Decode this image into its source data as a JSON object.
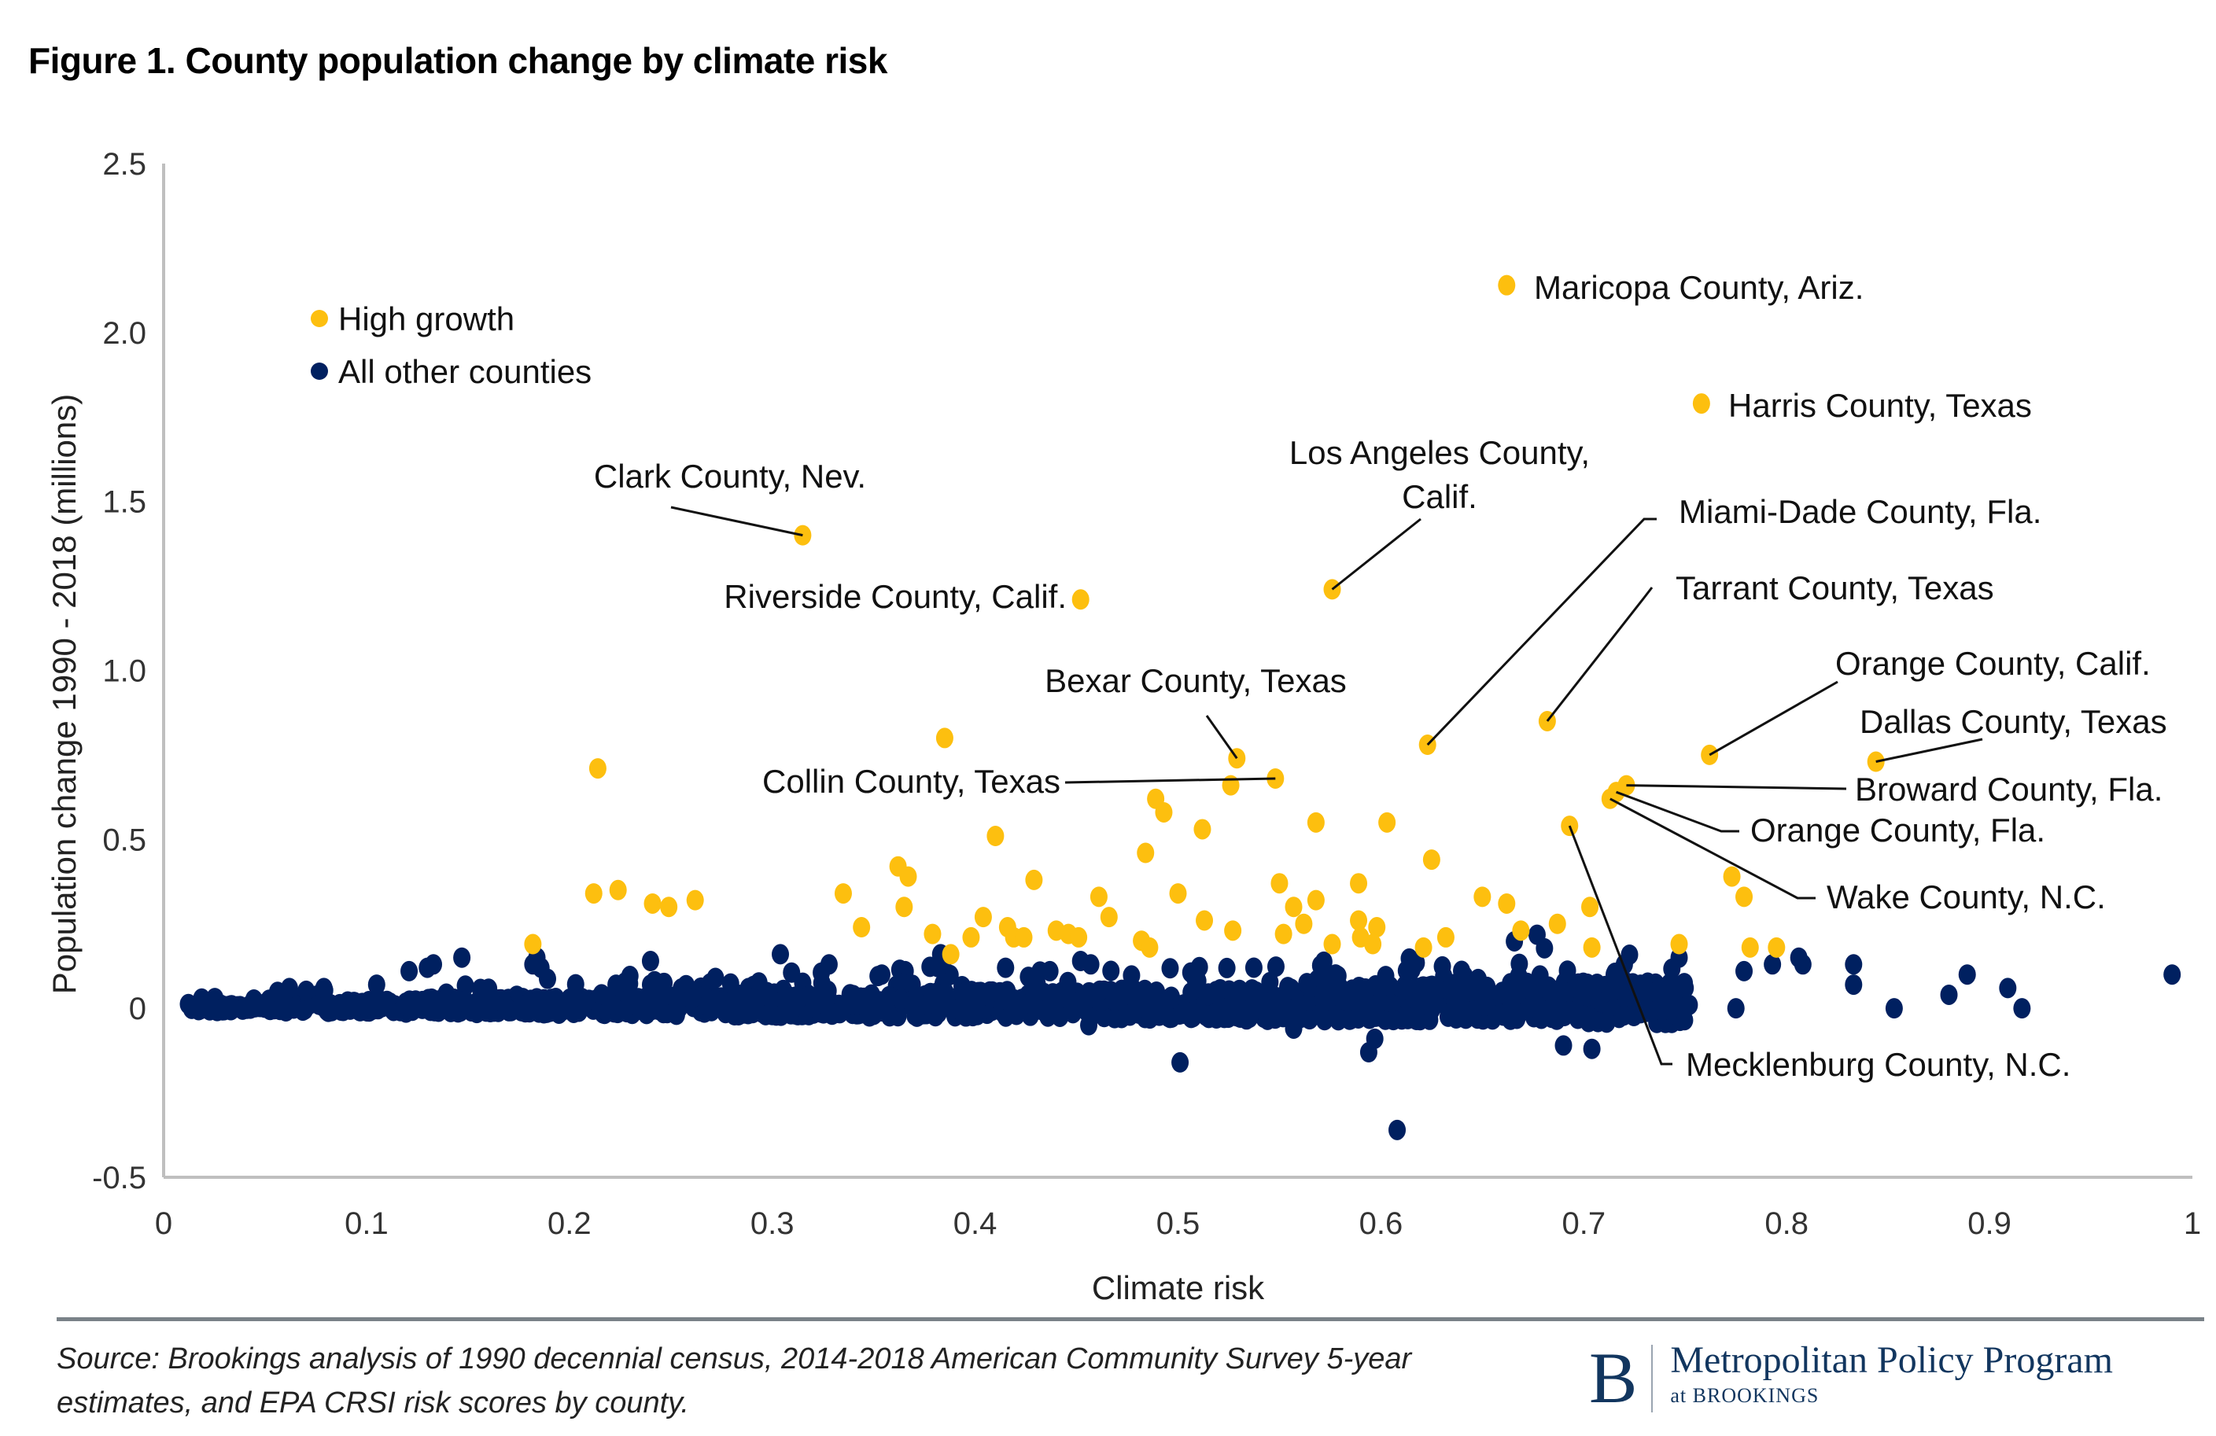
{
  "title": "Figure 1. County population change by climate risk",
  "source": "Source: Brookings analysis of 1990 decennial census, 2014-2018 American Community Survey 5-year estimates, and EPA CRSI risk scores by county.",
  "logo": {
    "mark": "B",
    "main": "Metropolitan Policy Program",
    "sub": "at BROOKINGS"
  },
  "chart_data": {
    "type": "scatter",
    "title": "Figure 1. County population change by climate risk",
    "xlabel": "Climate risk",
    "ylabel": "Population change 1990 - 2018 (millions)",
    "xlim": [
      0,
      1
    ],
    "ylim": [
      -0.5,
      2.5
    ],
    "xticks": [
      0,
      0.1,
      0.2,
      0.3,
      0.4,
      0.5,
      0.6,
      0.7,
      0.8,
      0.9,
      1
    ],
    "xtick_labels": [
      "0",
      "0.1",
      "0.2",
      "0.3",
      "0.4",
      "0.5",
      "0.6",
      "0.7",
      "0.8",
      "0.9",
      "1"
    ],
    "yticks": [
      -0.5,
      0,
      0.5,
      1.0,
      1.5,
      2.0,
      2.5
    ],
    "ytick_labels": [
      "-0.5",
      "0",
      "0.5",
      "1.0",
      "1.5",
      "2.0",
      "2.5"
    ],
    "grid": false,
    "legend_position": "top-left",
    "colors": {
      "high_growth": "#FDBF0F",
      "other": "#002060",
      "axis": "#BFBFBF",
      "leader": "#111111"
    },
    "series": [
      {
        "name": "High growth",
        "color": "#FDBF0F",
        "points": [
          [
            0.662,
            2.14
          ],
          [
            0.758,
            1.79
          ],
          [
            0.315,
            1.4
          ],
          [
            0.576,
            1.24
          ],
          [
            0.452,
            1.21
          ],
          [
            0.682,
            0.85
          ],
          [
            0.623,
            0.78
          ],
          [
            0.762,
            0.75
          ],
          [
            0.529,
            0.74
          ],
          [
            0.844,
            0.73
          ],
          [
            0.548,
            0.68
          ],
          [
            0.721,
            0.66
          ],
          [
            0.716,
            0.64
          ],
          [
            0.713,
            0.62
          ],
          [
            0.693,
            0.54
          ],
          [
            0.214,
            0.71
          ],
          [
            0.385,
            0.8
          ],
          [
            0.41,
            0.51
          ],
          [
            0.526,
            0.66
          ],
          [
            0.489,
            0.62
          ],
          [
            0.493,
            0.58
          ],
          [
            0.512,
            0.53
          ],
          [
            0.603,
            0.55
          ],
          [
            0.568,
            0.55
          ],
          [
            0.484,
            0.46
          ],
          [
            0.625,
            0.44
          ],
          [
            0.362,
            0.42
          ],
          [
            0.367,
            0.39
          ],
          [
            0.429,
            0.38
          ],
          [
            0.55,
            0.37
          ],
          [
            0.589,
            0.37
          ],
          [
            0.212,
            0.34
          ],
          [
            0.224,
            0.35
          ],
          [
            0.241,
            0.31
          ],
          [
            0.249,
            0.3
          ],
          [
            0.262,
            0.32
          ],
          [
            0.335,
            0.34
          ],
          [
            0.461,
            0.33
          ],
          [
            0.5,
            0.34
          ],
          [
            0.557,
            0.3
          ],
          [
            0.568,
            0.32
          ],
          [
            0.65,
            0.33
          ],
          [
            0.662,
            0.31
          ],
          [
            0.773,
            0.39
          ],
          [
            0.779,
            0.33
          ],
          [
            0.703,
            0.3
          ],
          [
            0.365,
            0.3
          ],
          [
            0.404,
            0.27
          ],
          [
            0.344,
            0.24
          ],
          [
            0.379,
            0.22
          ],
          [
            0.416,
            0.24
          ],
          [
            0.466,
            0.27
          ],
          [
            0.513,
            0.26
          ],
          [
            0.589,
            0.26
          ],
          [
            0.598,
            0.24
          ],
          [
            0.669,
            0.23
          ],
          [
            0.687,
            0.25
          ],
          [
            0.398,
            0.21
          ],
          [
            0.419,
            0.21
          ],
          [
            0.424,
            0.21
          ],
          [
            0.44,
            0.23
          ],
          [
            0.446,
            0.22
          ],
          [
            0.451,
            0.21
          ],
          [
            0.527,
            0.23
          ],
          [
            0.552,
            0.22
          ],
          [
            0.562,
            0.25
          ],
          [
            0.576,
            0.19
          ],
          [
            0.59,
            0.21
          ],
          [
            0.596,
            0.19
          ],
          [
            0.621,
            0.18
          ],
          [
            0.632,
            0.21
          ],
          [
            0.704,
            0.18
          ],
          [
            0.747,
            0.19
          ],
          [
            0.782,
            0.18
          ],
          [
            0.795,
            0.18
          ],
          [
            0.182,
            0.19
          ],
          [
            0.482,
            0.2
          ],
          [
            0.486,
            0.18
          ],
          [
            0.388,
            0.16
          ]
        ]
      },
      {
        "name": "All other counties",
        "color": "#002060",
        "points": [
          [
            0.501,
            -0.16
          ],
          [
            0.608,
            -0.36
          ],
          [
            0.594,
            -0.13
          ],
          [
            0.597,
            -0.09
          ],
          [
            0.69,
            -0.11
          ],
          [
            0.704,
            -0.12
          ],
          [
            0.456,
            -0.05
          ],
          [
            0.557,
            -0.06
          ],
          [
            0.99,
            0.1
          ],
          [
            0.909,
            0.06
          ],
          [
            0.889,
            0.1
          ],
          [
            0.88,
            0.04
          ],
          [
            0.853,
            0.0
          ],
          [
            0.916,
            0.0
          ],
          [
            0.833,
            0.07
          ],
          [
            0.833,
            0.13
          ],
          [
            0.775,
            0.0
          ],
          [
            0.779,
            0.11
          ],
          [
            0.793,
            0.13
          ],
          [
            0.806,
            0.15
          ],
          [
            0.808,
            0.13
          ],
          [
            0.728,
            0.07
          ],
          [
            0.73,
            -0.01
          ],
          [
            0.75,
            0.06
          ],
          [
            0.752,
            0.01
          ],
          [
            0.747,
            0.15
          ],
          [
            0.715,
            0.1
          ],
          [
            0.72,
            0.13
          ],
          [
            0.062,
            0.06
          ],
          [
            0.079,
            0.06
          ],
          [
            0.105,
            0.07
          ],
          [
            0.121,
            0.11
          ],
          [
            0.13,
            0.12
          ],
          [
            0.133,
            0.13
          ],
          [
            0.147,
            0.15
          ],
          [
            0.182,
            0.13
          ],
          [
            0.184,
            0.15
          ],
          [
            0.186,
            0.12
          ],
          [
            0.223,
            0.07
          ],
          [
            0.24,
            0.14
          ],
          [
            0.24,
            0.07
          ],
          [
            0.242,
            0.08
          ],
          [
            0.272,
            0.09
          ],
          [
            0.304,
            0.16
          ],
          [
            0.328,
            0.13
          ],
          [
            0.354,
            0.1
          ],
          [
            0.383,
            0.16
          ],
          [
            0.384,
            0.13
          ],
          [
            0.415,
            0.12
          ],
          [
            0.452,
            0.14
          ],
          [
            0.457,
            0.13
          ]
        ],
        "dense_cluster_note": "Approx. 3,000 additional counties concentrated near 0 (roughly -0.05 to 0.1 million) across climate risk 0.01-0.75"
      }
    ],
    "annotations": [
      {
        "label": "Maricopa County, Ariz.",
        "point": [
          0.662,
          2.14
        ],
        "leader": false
      },
      {
        "label": "Harris County, Texas",
        "point": [
          0.758,
          1.79
        ],
        "leader": false
      },
      {
        "label": "Clark County, Nev.",
        "point": [
          0.315,
          1.4
        ],
        "leader": true
      },
      {
        "label": "Los Angeles County, Calif.",
        "point": [
          0.576,
          1.24
        ],
        "leader": true
      },
      {
        "label": "Riverside County, Calif.",
        "point": [
          0.452,
          1.21
        ],
        "leader": false
      },
      {
        "label": "Miami-Dade County, Fla.",
        "point": [
          0.623,
          0.78
        ],
        "leader": true
      },
      {
        "label": "Tarrant County, Texas",
        "point": [
          0.682,
          0.85
        ],
        "leader": true
      },
      {
        "label": "Bexar County, Texas",
        "point": [
          0.529,
          0.74
        ],
        "leader": true
      },
      {
        "label": "Collin County, Texas",
        "point": [
          0.548,
          0.68
        ],
        "leader": true
      },
      {
        "label": "Orange County, Calif.",
        "point": [
          0.762,
          0.75
        ],
        "leader": true
      },
      {
        "label": "Dallas County, Texas",
        "point": [
          0.844,
          0.73
        ],
        "leader": true
      },
      {
        "label": "Broward County, Fla.",
        "point": [
          0.721,
          0.66
        ],
        "leader": true
      },
      {
        "label": "Orange County, Fla.",
        "point": [
          0.716,
          0.64
        ],
        "leader": true
      },
      {
        "label": "Wake County, N.C.",
        "point": [
          0.713,
          0.62
        ],
        "leader": true
      },
      {
        "label": "Mecklenburg County, N.C.",
        "point": [
          0.693,
          0.54
        ],
        "leader": true
      }
    ]
  }
}
